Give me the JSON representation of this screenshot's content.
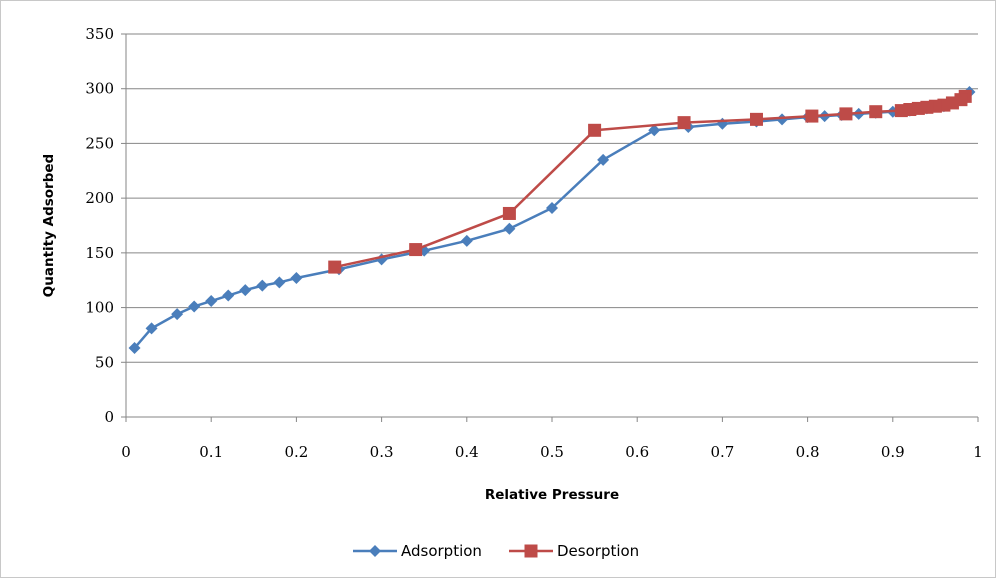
{
  "chart_data": {
    "type": "line",
    "title": "",
    "xlabel": "Relative Pressure",
    "ylabel": "Quantity Adsorbed",
    "xlim": [
      0,
      1
    ],
    "ylim": [
      0,
      350
    ],
    "xticks": [
      "0",
      "0.1",
      "0.2",
      "0.3",
      "0.4",
      "0.5",
      "0.6",
      "0.7",
      "0.8",
      "0.9",
      "1"
    ],
    "yticks": [
      "0",
      "50",
      "100",
      "150",
      "200",
      "250",
      "300",
      "350"
    ],
    "grid": "horizontal",
    "legend_position": "bottom",
    "series": [
      {
        "name": "Adsorption",
        "color": "#4a7ebb",
        "marker": "diamond",
        "x": [
          0.01,
          0.03,
          0.06,
          0.08,
          0.1,
          0.12,
          0.14,
          0.16,
          0.18,
          0.2,
          0.25,
          0.3,
          0.35,
          0.4,
          0.45,
          0.5,
          0.56,
          0.62,
          0.66,
          0.7,
          0.74,
          0.77,
          0.8,
          0.82,
          0.84,
          0.86,
          0.88,
          0.9,
          0.92,
          0.94,
          0.96,
          0.97,
          0.98,
          0.99
        ],
        "y": [
          63,
          81,
          94,
          101,
          106,
          111,
          116,
          120,
          123,
          127,
          135,
          144,
          152,
          161,
          172,
          191,
          235,
          262,
          265,
          268,
          270,
          272,
          274,
          275,
          276,
          277,
          278,
          279,
          280,
          282,
          284,
          287,
          290,
          297
        ]
      },
      {
        "name": "Desorption",
        "color": "#be4b48",
        "marker": "square",
        "x": [
          0.985,
          0.98,
          0.97,
          0.96,
          0.95,
          0.94,
          0.93,
          0.92,
          0.91,
          0.88,
          0.845,
          0.805,
          0.74,
          0.655,
          0.55,
          0.45,
          0.34,
          0.245
        ],
        "y": [
          293,
          290,
          287,
          285,
          284,
          283,
          282,
          281,
          280,
          279,
          277,
          275,
          272,
          269,
          262,
          186,
          153,
          137
        ]
      }
    ]
  }
}
